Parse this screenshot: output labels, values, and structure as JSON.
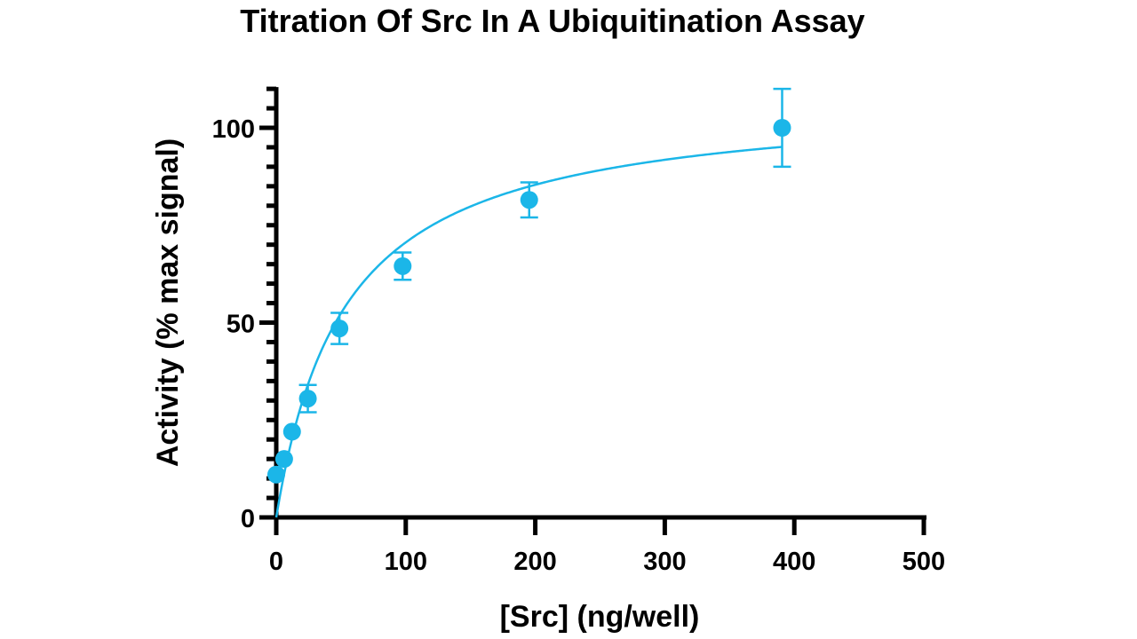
{
  "chart_data": {
    "type": "scatter",
    "title": "Titration Of Src In A Ubiquitination Assay",
    "xlabel": "[Src] (ng/well)",
    "ylabel": "Activity (% max signal)",
    "xlim": [
      0,
      500
    ],
    "ylim": [
      0,
      110
    ],
    "xticks": [
      0,
      100,
      200,
      300,
      400,
      500
    ],
    "yticks": [
      0,
      50,
      100
    ],
    "grid": false,
    "legend": "none",
    "color": "#1bb6e8",
    "series": [
      {
        "x": [
          0,
          6.1,
          12.2,
          24.4,
          48.8,
          97.6,
          195.3,
          390.6
        ],
        "y": [
          11,
          15,
          22,
          30.5,
          48.5,
          64.5,
          81.5,
          100
        ],
        "error": [
          0,
          0,
          0,
          3.5,
          4,
          3.5,
          4.5,
          10
        ]
      }
    ],
    "fit": {
      "vmax": 108,
      "km": 53
    }
  }
}
